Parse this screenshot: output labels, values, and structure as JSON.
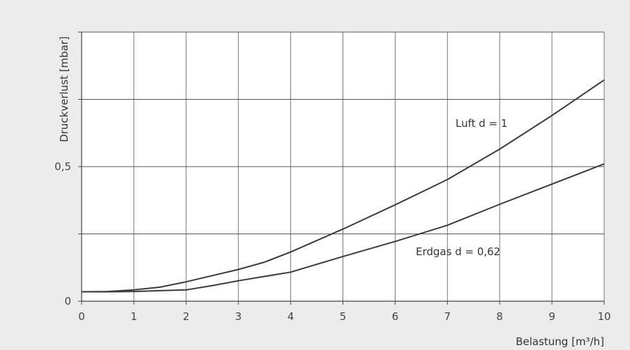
{
  "chart_data": {
    "type": "line",
    "title": "",
    "xlabel": "Belastung [m³/h]",
    "ylabel": "Druckverlust [mbar]",
    "xlim": [
      0,
      10
    ],
    "ylim": [
      0,
      1.0
    ],
    "x_ticks": [
      "0",
      "1",
      "2",
      "3",
      "4",
      "5",
      "6",
      "7",
      "8",
      "9",
      "10"
    ],
    "y_ticks": [
      {
        "value": 0,
        "label": "0"
      },
      {
        "value": 0.5,
        "label": "0,5"
      }
    ],
    "grid": true,
    "series": [
      {
        "name": "Luft d = 1",
        "x": [
          0,
          0.5,
          1,
          1.5,
          2,
          2.5,
          3,
          3.5,
          4,
          5,
          6,
          7,
          8,
          9,
          10
        ],
        "y": [
          0.035,
          0.036,
          0.042,
          0.052,
          0.072,
          0.095,
          0.118,
          0.145,
          0.183,
          0.268,
          0.358,
          0.452,
          0.565,
          0.69,
          0.822
        ]
      },
      {
        "name": "Erdgas d = 0,62",
        "x": [
          0,
          0.5,
          1,
          1.5,
          2,
          2.5,
          3,
          3.5,
          4,
          5,
          6,
          7,
          8,
          9,
          10
        ],
        "y": [
          0.035,
          0.035,
          0.036,
          0.039,
          0.042,
          0.058,
          0.076,
          0.092,
          0.108,
          0.166,
          0.222,
          0.282,
          0.36,
          0.435,
          0.51
        ]
      }
    ],
    "annotations": [
      {
        "text": "Luft d = 1",
        "series": 0
      },
      {
        "text": "Erdgas d = 0,62",
        "series": 1
      }
    ]
  }
}
